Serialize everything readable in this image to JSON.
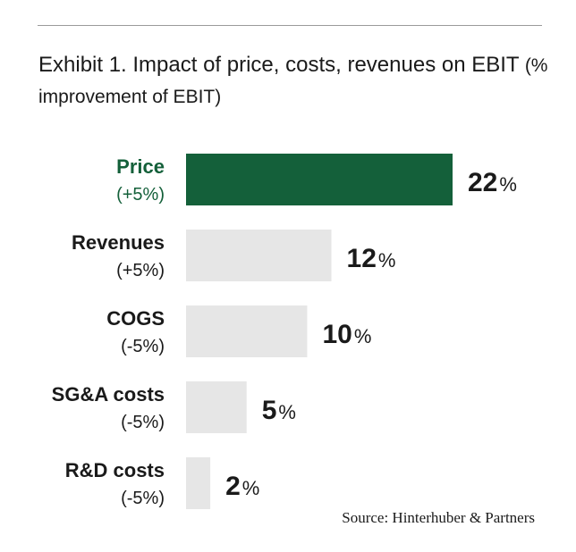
{
  "title": {
    "main": "Exhibit 1. Impact of price, costs, revenues on EBIT",
    "sub": "(% improvement of EBIT)"
  },
  "colors": {
    "highlight": "#14603a",
    "bar": "#e6e6e6",
    "text": "#1a1a1a"
  },
  "chart_data": {
    "type": "bar",
    "orientation": "horizontal",
    "title": "Exhibit 1. Impact of price, costs, revenues on EBIT (% improvement of EBIT)",
    "categories": [
      "Price",
      "Revenues",
      "COGS",
      "SG&A costs",
      "R&D costs"
    ],
    "sublabels": [
      "(+5%)",
      "(+5%)",
      "(-5%)",
      "(-5%)",
      "(-5%)"
    ],
    "values": [
      22,
      12,
      10,
      5,
      2
    ],
    "unit": "%",
    "highlighted": [
      true,
      false,
      false,
      false,
      false
    ],
    "xlim": [
      0,
      22
    ],
    "grid": false,
    "legend": "none"
  },
  "source": "Source: Hinterhuber & Partners"
}
